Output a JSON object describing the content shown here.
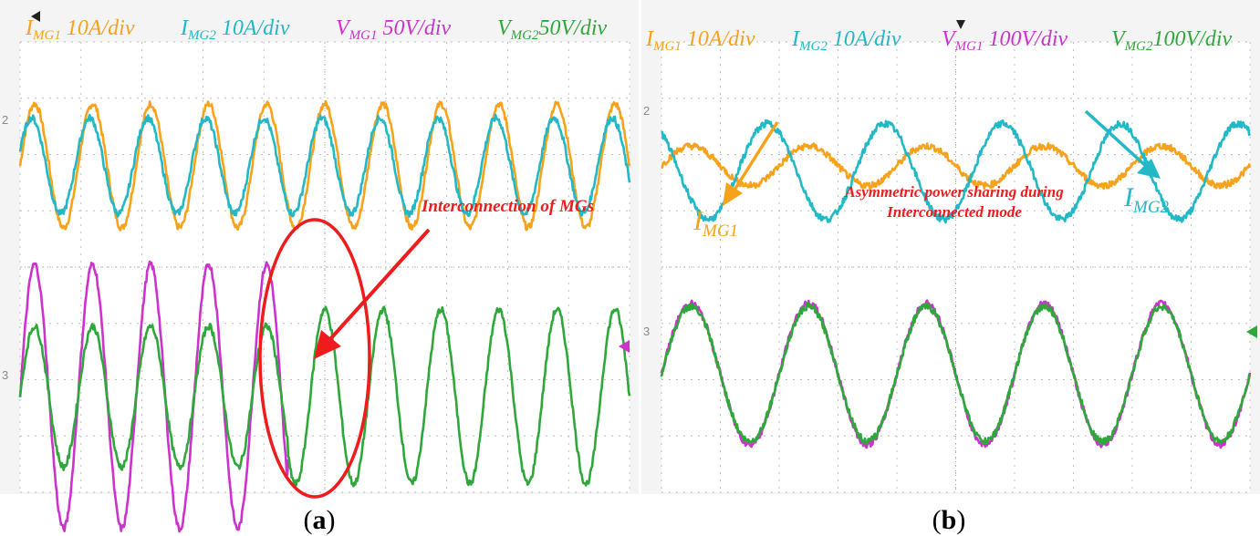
{
  "colors": {
    "img1": "#f7a21b",
    "img2": "#22b8c6",
    "vmg1": "#cc33cc",
    "vmg2": "#2ea83a",
    "annotation": "#ee1c1c",
    "grid": "#bdbdbd",
    "frame_bg": "#f4f4f4",
    "plot_bg": "#ffffff"
  },
  "chart_data": [
    {
      "type": "line",
      "panel": "a",
      "caption_open": "(",
      "caption_letter": "a",
      "caption_close": ")",
      "title": "",
      "xlabel": "",
      "ylabel": "",
      "grid": true,
      "legend_placement": "top",
      "x_divisions": 10,
      "y_divisions": 8,
      "channel_markers": [
        "2",
        "3"
      ],
      "legend": [
        {
          "sym": "I",
          "sub": "MG1",
          "text": " 10A/div",
          "color": "#f7a21b"
        },
        {
          "sym": "I",
          "sub": "MG2",
          "text": " 10A/div",
          "color": "#22b8c6"
        },
        {
          "sym": "V",
          "sub": "MG1",
          "text": " 50V/div",
          "color": "#cc33cc"
        },
        {
          "sym": "V",
          "sub": "MG2",
          "text": "50V/div",
          "color": "#2ea83a"
        }
      ],
      "series": [
        {
          "name": "I_MG1",
          "legend": "I MG1 10A/div",
          "color": "#f7a21b",
          "cycles": 10.5,
          "offset_div": 5.8,
          "amp_before_div": 1.1,
          "amp_after_div": 1.0,
          "change_at_div": null,
          "phase": 0.0
        },
        {
          "name": "I_MG2",
          "legend": "I MG2 10A/div",
          "color": "#22b8c6",
          "cycles": 10.5,
          "offset_div": 5.8,
          "amp_before_div": 0.85,
          "amp_after_div": 0.95,
          "change_at_div": null,
          "phase": 0.05
        },
        {
          "name": "V_MG1",
          "legend": "V MG1 50V/div",
          "color": "#cc33cc",
          "cycles": 10.5,
          "offset_div": 1.7,
          "amp_before_div": 2.35,
          "amp_after_div": 1.55,
          "change_at_div": 4.4,
          "phase": 0.0,
          "stop_at_div": 4.4
        },
        {
          "name": "V_MG2",
          "legend": "V MG2 50V/div",
          "color": "#2ea83a",
          "cycles": 10.5,
          "offset_div": 1.7,
          "amp_before_div": 1.25,
          "amp_after_div": 1.55,
          "change_at_div": 4.4,
          "phase": 0.0
        }
      ],
      "annotations": [
        {
          "type": "text",
          "text": "Interconnection of MGs",
          "color": "#ee1c1c"
        },
        {
          "type": "ellipse",
          "label": "interconnection-region"
        },
        {
          "type": "arrow",
          "label": "interconnection-arrow"
        }
      ]
    },
    {
      "type": "line",
      "panel": "b",
      "caption_open": "(",
      "caption_letter": "b",
      "caption_close": ")",
      "title": "",
      "xlabel": "",
      "ylabel": "",
      "grid": true,
      "legend_placement": "top",
      "x_divisions": 10,
      "y_divisions": 8,
      "channel_markers": [
        "2",
        "3"
      ],
      "legend": [
        {
          "sym": "I",
          "sub": "MG1",
          "text": " 10A/div",
          "color": "#f7a21b"
        },
        {
          "sym": "I",
          "sub": "MG2",
          "text": " 10A/div",
          "color": "#22b8c6"
        },
        {
          "sym": "V",
          "sub": "MG1",
          "text": " 100V/div",
          "color": "#cc33cc"
        },
        {
          "sym": "V",
          "sub": "MG2",
          "text": "100V/div",
          "color": "#2ea83a"
        }
      ],
      "series": [
        {
          "name": "I_MG1",
          "legend": "I MG1 10A/div",
          "color": "#f7a21b",
          "cycles": 5,
          "offset_div": 5.8,
          "amp_before_div": 0.35,
          "amp_after_div": 0.35,
          "change_at_div": null,
          "phase": 0.0
        },
        {
          "name": "I_MG2",
          "legend": "I MG2 10A/div",
          "color": "#22b8c6",
          "cycles": 5,
          "offset_div": 5.7,
          "amp_before_div": 0.85,
          "amp_after_div": 0.85,
          "change_at_div": null,
          "phase": 0.35
        },
        {
          "name": "V_MG1",
          "legend": "V MG1 100V/div",
          "color": "#cc33cc",
          "cycles": 5,
          "offset_div": 2.1,
          "amp_before_div": 1.25,
          "amp_after_div": 1.25,
          "change_at_div": null,
          "phase": 0.0
        },
        {
          "name": "V_MG2",
          "legend": "V MG2 100V/div",
          "color": "#2ea83a",
          "cycles": 5,
          "offset_div": 2.1,
          "amp_before_div": 1.2,
          "amp_after_div": 1.2,
          "change_at_div": null,
          "phase": 0.0
        }
      ],
      "annotations": [
        {
          "type": "text",
          "text": "Asymmetric power sharing during",
          "color": "#ee1c1c"
        },
        {
          "type": "text",
          "text": "Interconnected mode",
          "color": "#ee1c1c"
        },
        {
          "type": "label",
          "sym": "I",
          "sub": "MG1",
          "color": "#f7a21b"
        },
        {
          "type": "label",
          "sym": "I",
          "sub": "MG2",
          "color": "#22b8c6"
        }
      ]
    }
  ]
}
